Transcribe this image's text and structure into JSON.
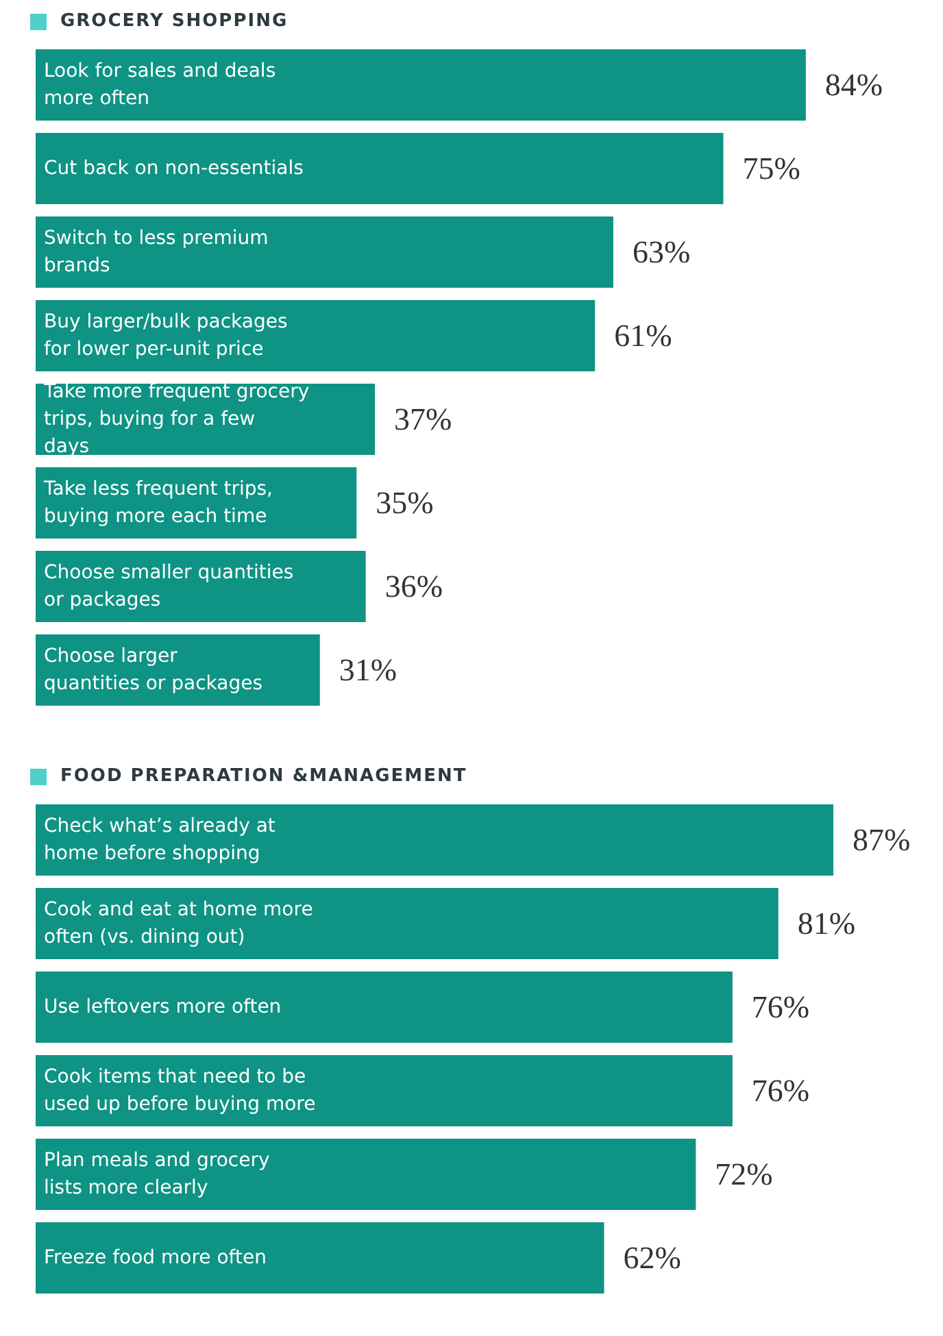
{
  "chart_data": [
    {
      "type": "bar",
      "orientation": "horizontal",
      "title": "GROCERY SHOPPING",
      "categories": [
        "Look for sales and deals more often",
        "Cut back on non-essentials",
        "Switch to less premium brands",
        "Buy larger/bulk packages for lower per-unit price",
        "Take more frequent grocery trips, buying for a few days",
        "Take less frequent trips, buying more each time",
        "Choose smaller quantities or packages",
        "Choose larger quantities or packages"
      ],
      "values": [
        84,
        75,
        63,
        61,
        37,
        35,
        36,
        31
      ],
      "value_labels": [
        "84%",
        "75%",
        "63%",
        "61%",
        "37%",
        "35%",
        "36%",
        "31%"
      ],
      "color": "#0e9384"
    },
    {
      "type": "bar",
      "orientation": "horizontal",
      "title": "FOOD PREPARATION &MANAGEMENT",
      "categories": [
        "Check what’s already at home before shopping",
        "Cook and eat at home more often (vs. dining out)",
        "Use leftovers more often",
        "Cook items that need to be used up before buying more",
        "Plan meals and grocery lists more clearly",
        "Freeze food more often"
      ],
      "values": [
        87,
        81,
        76,
        76,
        72,
        62
      ],
      "value_labels": [
        "87%",
        "81%",
        "76%",
        "76%",
        "72%",
        "62%"
      ],
      "color": "#0e9384"
    }
  ]
}
